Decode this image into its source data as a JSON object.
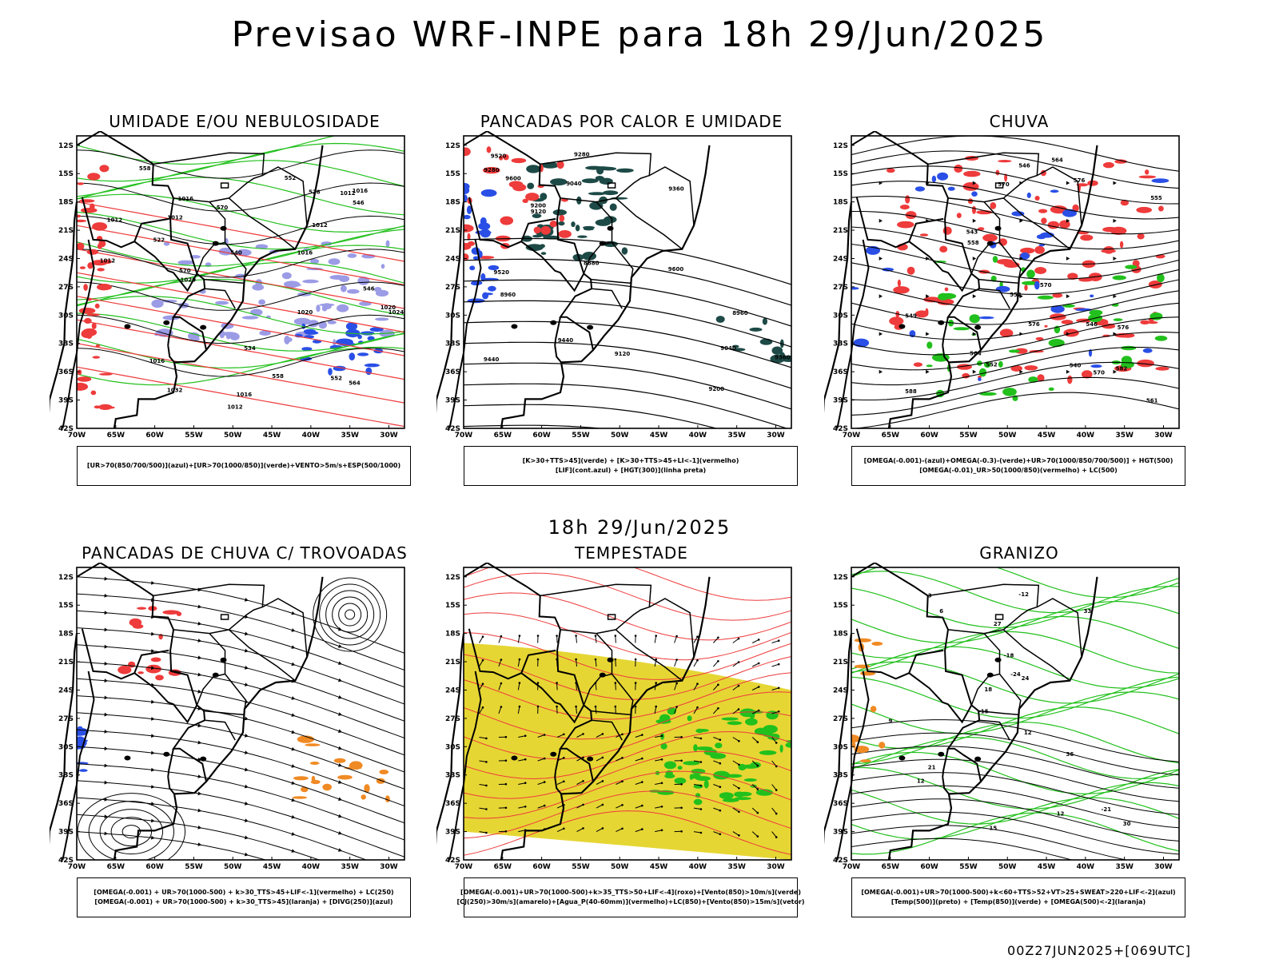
{
  "header": {
    "title": "Previsao WRF-INPE  para 18h 29/Jun/2025",
    "mid_title": "18h 29/Jun/2025",
    "footer": "00Z27JUN2025+[069UTC]"
  },
  "axes": {
    "lat_labels": [
      "12S",
      "15S",
      "18S",
      "21S",
      "24S",
      "27S",
      "30S",
      "33S",
      "36S",
      "39S",
      "42S"
    ],
    "lon_labels": [
      "70W",
      "65W",
      "60W",
      "55W",
      "50W",
      "45W",
      "40W",
      "35W",
      "30W"
    ]
  },
  "colors": {
    "blue": "#2a4fe6",
    "lavender": "#9b9be6",
    "green": "#22c01c",
    "red": "#ee3b3b",
    "orange": "#f08a24",
    "yellow": "#e6d634",
    "darkteal": "#1d4a46",
    "black": "#000000"
  },
  "panels": [
    {
      "id": "umidade",
      "title": "UMIDADE E/OU NEBULOSIDADE",
      "legend": [
        "[UR>70(850/700/500)](azul)+[UR>70(1000/850)](verde)+VENTO>5m/s+ESP(500/1000)"
      ],
      "labels": [
        "1012",
        "1012",
        "1016",
        "1016",
        "1012",
        "1012",
        "1020",
        "1020",
        "1016",
        "1024",
        "1020",
        "1016",
        "1012",
        "1016",
        "1012",
        "1032",
        "570",
        "570",
        "564",
        "558",
        "552",
        "546",
        "540",
        "534",
        "528",
        "522",
        "546",
        "552",
        "558"
      ]
    },
    {
      "id": "calor",
      "title": "PANCADAS POR CALOR E UMIDADE",
      "legend": [
        "[K>30+TTS>45](verde) + [K>30+TTS>45+LI<-1](vermelho)",
        "[LIF](cont.azul) + [HGT(300)](linha preta)"
      ],
      "labels": [
        "9600",
        "9520",
        "9600",
        "9440",
        "9360",
        "9520",
        "9440",
        "9360",
        "9280",
        "9200",
        "9120",
        "9040",
        "8960",
        "8880",
        "8960",
        "9040",
        "9280",
        "9200",
        "9120"
      ]
    },
    {
      "id": "chuva",
      "title": "CHUVA",
      "legend": [
        "[OMEGA(-0.001)-(azul)+OMEGA(-0.3)-(verde)+UR>70(1000/850/700/500)] + HGT(500)",
        "[OMEGA(-0.01)_UR>50(1000/850)(vermelho) + LC(500)"
      ],
      "labels": [
        "588",
        "576",
        "570",
        "576",
        "570",
        "564",
        "582",
        "576",
        "570",
        "564",
        "561",
        "558",
        "552",
        "546",
        "540",
        "543",
        "546",
        "549",
        "552",
        "555"
      ]
    },
    {
      "id": "trovoadas",
      "title": "PANCADAS DE CHUVA C/ TROVOADAS",
      "legend": [
        "[OMEGA(-0.001) + UR>70(1000-500) + k>30_TTS>45+LIF<-1](vermelho) + LC(250)",
        "[OMEGA(-0.001) + UR>70(1000-500) + k>30_TTS>45](laranja) + [DIVG(250)](azul)"
      ],
      "labels": []
    },
    {
      "id": "tempestade",
      "title": "TEMPESTADE",
      "legend": [
        "[OMEGA(-0.001)+UR>70(1000-500)+k>35_TTS>50+LIF<-4](roxo)+[Vento(850)>10m/s](verde)",
        "[CJ(250)>30m/s](amarelo)+[Agua_P(40-60mm)](vermelho)+LC(850)+[Vento(850)>15m/s](vetor)"
      ],
      "labels": []
    },
    {
      "id": "granizo",
      "title": "GRANIZO",
      "legend": [
        "[OMEGA(-0.001)+UR>70(1000-500)+k<60+TTS>52+VT>25+SWEAT>220+LIF<-2](azul)",
        "[Temp(500)](preto) + [Temp(850)](verde) + [OMEGA(500)<-2](laranja)"
      ],
      "labels": [
        "12",
        "12",
        "12",
        "9",
        "6",
        "3",
        "15",
        "18",
        "21",
        "24",
        "27",
        "30",
        "33",
        "36",
        "-12",
        "-15",
        "-18",
        "-24",
        "-21"
      ]
    }
  ]
}
